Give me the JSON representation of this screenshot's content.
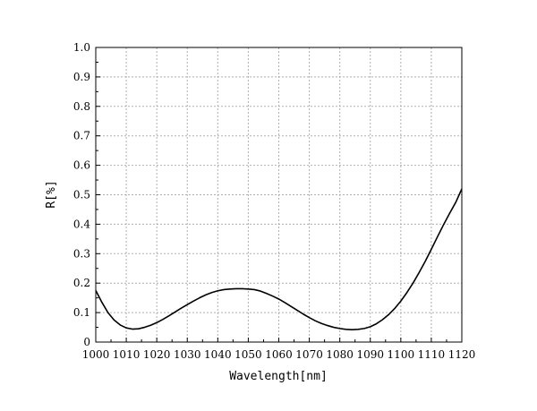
{
  "chart_data": {
    "type": "line",
    "title": "",
    "xlabel": "Wavelength[nm]",
    "ylabel": "R[%]",
    "xlim": [
      1000,
      1120
    ],
    "ylim": [
      0,
      1.0
    ],
    "grid": true,
    "x_ticks": [
      "1000",
      "1010",
      "1020",
      "1030",
      "1040",
      "1050",
      "1060",
      "1070",
      "1080",
      "1090",
      "1100",
      "1110",
      "1120"
    ],
    "y_ticks": [
      "0",
      "0.1",
      "0.2",
      "0.3",
      "0.4",
      "0.5",
      "0.6",
      "0.7",
      "0.8",
      "0.9",
      "1.0"
    ],
    "series": [
      {
        "color": "#000000",
        "x": [
          1000,
          1002,
          1004,
          1006,
          1008,
          1010,
          1012,
          1014,
          1016,
          1018,
          1020,
          1022,
          1024,
          1026,
          1028,
          1030,
          1032,
          1034,
          1036,
          1038,
          1040,
          1042,
          1044,
          1046,
          1048,
          1050,
          1052,
          1054,
          1056,
          1058,
          1060,
          1062,
          1064,
          1066,
          1068,
          1070,
          1072,
          1074,
          1076,
          1078,
          1080,
          1082,
          1084,
          1086,
          1088,
          1090,
          1092,
          1094,
          1096,
          1098,
          1100,
          1102,
          1104,
          1106,
          1108,
          1110,
          1112,
          1114,
          1116,
          1118,
          1120
        ],
        "y": [
          0.175,
          0.135,
          0.1,
          0.075,
          0.058,
          0.048,
          0.044,
          0.045,
          0.05,
          0.057,
          0.066,
          0.077,
          0.089,
          0.102,
          0.115,
          0.127,
          0.139,
          0.15,
          0.16,
          0.168,
          0.174,
          0.178,
          0.18,
          0.181,
          0.181,
          0.18,
          0.178,
          0.173,
          0.165,
          0.156,
          0.146,
          0.134,
          0.121,
          0.108,
          0.095,
          0.083,
          0.072,
          0.063,
          0.056,
          0.05,
          0.046,
          0.043,
          0.042,
          0.043,
          0.046,
          0.052,
          0.062,
          0.076,
          0.093,
          0.114,
          0.139,
          0.168,
          0.2,
          0.236,
          0.274,
          0.315,
          0.357,
          0.398,
          0.437,
          0.474,
          0.52
        ]
      }
    ]
  }
}
